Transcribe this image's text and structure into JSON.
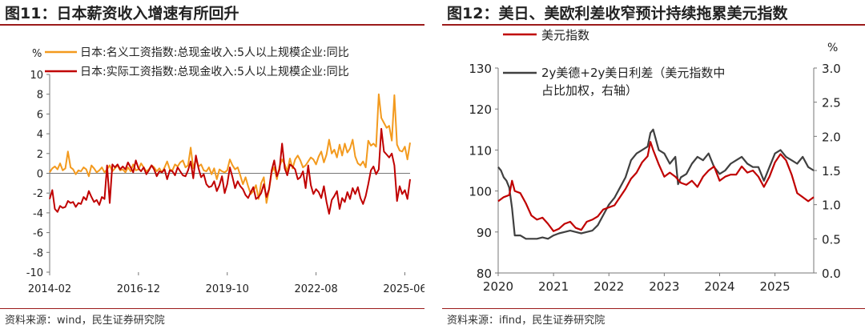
{
  "chart_data": [
    {
      "id": "fig11",
      "type": "line",
      "title": "图11：日本薪资收入增速有所回升",
      "unit_label": "%",
      "source": "资料来源：wind，民生证券研究院",
      "ylim": [
        -10,
        10
      ],
      "yticks": [
        -10,
        -8,
        -6,
        -4,
        -2,
        0,
        2,
        4,
        6,
        8,
        10
      ],
      "x_tick_labels": [
        "2014-02",
        "2016-12",
        "2019-10",
        "2022-08",
        "2025-06"
      ],
      "x_tick_index": [
        0,
        34,
        68,
        102,
        136
      ],
      "colors": {
        "nominal": "#f39a1e",
        "real": "#c00000"
      },
      "series": [
        {
          "name": "日本:名义工资指数:总现金收入:5人以上规模企业:同比",
          "key": "nominal",
          "values": [
            0.1,
            0.5,
            0.7,
            0.4,
            1.0,
            0.3,
            0.5,
            2.2,
            0.6,
            0.4,
            -0.1,
            0.3,
            0.2,
            0.6,
            0.4,
            -0.3,
            0.8,
            0.5,
            0.1,
            0.3,
            0.6,
            0.1,
            0.4,
            0.8,
            0.2,
            0.5,
            0.8,
            0.3,
            0.4,
            0.1,
            0.6,
            0.2,
            0.9,
            0.3,
            0.4,
            1.0,
            0.6,
            0.2,
            0.4,
            0.8,
            0.6,
            0.2,
            0.5,
            0.1,
            0.6,
            1.2,
            0.4,
            0.3,
            0.9,
            0.7,
            1.1,
            1.3,
            0.6,
            0.8,
            2.6,
            0.5,
            1.4,
            0.7,
            0.9,
            0.3,
            0.2,
            0.6,
            -0.1,
            0.5,
            -0.6,
            0.4,
            0.2,
            0.1,
            0.3,
            1.4,
            0.8,
            0.4,
            0.6,
            -0.2,
            -1.1,
            -0.4,
            -1.3,
            -2.1,
            -1.8,
            -1.2,
            -2.6,
            -1.0,
            -0.4,
            -3.0,
            -1.7,
            0.1,
            0.6,
            -0.6,
            0.7,
            1.4,
            0.9,
            0.2,
            1.5,
            0.5,
            1.4,
            1.8,
            1.3,
            0.6,
            0.8,
            1.2,
            1.6,
            1.4,
            0.9,
            1.7,
            2.2,
            1.1,
            1.9,
            3.4,
            2.0,
            2.4,
            1.6,
            2.9,
            1.8,
            3.0,
            2.1,
            2.5,
            3.4,
            1.7,
            1.0,
            0.8,
            1.2,
            0.6,
            3.3,
            2.8,
            3.0,
            2.7,
            8.0,
            5.6,
            5.1,
            4.6,
            4.8,
            3.3,
            7.9,
            2.9,
            2.3,
            2.2,
            2.7,
            1.4,
            3.1
          ]
        },
        {
          "name": "日本:实际工资指数:总现金收入:5人以上规模企业:同比",
          "key": "real",
          "values": [
            -2.6,
            -1.7,
            -3.6,
            -3.9,
            -3.3,
            -3.5,
            -3.4,
            -2.8,
            -3.0,
            -2.9,
            -3.4,
            -3.0,
            -3.1,
            -2.4,
            -2.7,
            -1.8,
            -2.4,
            -2.9,
            -2.7,
            -3.2,
            -2.4,
            -2.6,
            0.8,
            -3.0,
            0.9,
            0.6,
            0.9,
            0.4,
            0.7,
            0.4,
            1.1,
            0.6,
            0.1,
            1.3,
            0.5,
            0.2,
            0.6,
            -0.1,
            0.3,
            0.8,
            0.4,
            -0.3,
            0.2,
            0.1,
            0.4,
            -0.6,
            0.3,
            0.2,
            -0.2,
            0.6,
            0.2,
            -0.2,
            -0.3,
            0.3,
            1.2,
            -0.5,
            1.8,
            0.5,
            -0.4,
            -0.1,
            -1.1,
            -1.4,
            -1.3,
            -0.8,
            -1.8,
            -1.2,
            -0.3,
            -2.0,
            -1.1,
            0.6,
            -0.4,
            -1.5,
            -0.8,
            -1.3,
            -1.6,
            -2.2,
            -2.5,
            -1.9,
            -1.4,
            -2.6,
            -2.4,
            -2.0,
            -1.1,
            -2.4,
            -1.6,
            0.3,
            1.3,
            -0.3,
            0.4,
            3.0,
            0.5,
            -0.2,
            0.9,
            0.7,
            0.4,
            -0.6,
            -0.4,
            0.2,
            -1.5,
            0.8,
            -1.2,
            -2.1,
            -1.6,
            -1.9,
            -2.5,
            -1.3,
            -2.9,
            -4.1,
            -2.7,
            -2.3,
            -1.8,
            -3.6,
            -2.5,
            -2.9,
            -1.9,
            -2.6,
            -1.5,
            -2.1,
            -1.4,
            -2.5,
            -3.1,
            -2.3,
            -1.1,
            0.3,
            0.7,
            -0.1,
            0.4,
            4.5,
            2.2,
            1.9,
            1.6,
            2.0,
            0.8,
            -2.8,
            -1.3,
            -2.1,
            -1.7,
            -2.6,
            -0.6
          ]
        }
      ]
    },
    {
      "id": "fig12",
      "type": "line",
      "title": "图12：美日、美欧利差收窄预计持续拖累美元指数",
      "right_unit_label": "%",
      "source": "资料来源：ifind，民生证券研究院",
      "x_range": [
        2020.0,
        2025.7
      ],
      "x_ticks": [
        2020,
        2021,
        2022,
        2023,
        2024,
        2025
      ],
      "left_axis": {
        "ylim": [
          80,
          130
        ],
        "ticks": [
          80,
          90,
          100,
          110,
          120,
          130
        ]
      },
      "right_axis": {
        "ylim": [
          0.0,
          3.0
        ],
        "ticks": [
          "0.0",
          "0.5",
          "1.0",
          "1.5",
          "2.0",
          "2.5",
          "3.0"
        ]
      },
      "colors": {
        "dxy": "#c00000",
        "spread": "#404040"
      },
      "series": [
        {
          "name": "美元指数",
          "key": "dxy",
          "axis": "left",
          "x": [
            2020.0,
            2020.1,
            2020.2,
            2020.25,
            2020.3,
            2020.4,
            2020.5,
            2020.6,
            2020.7,
            2020.8,
            2020.9,
            2021.0,
            2021.1,
            2021.2,
            2021.3,
            2021.4,
            2021.5,
            2021.6,
            2021.7,
            2021.8,
            2021.9,
            2022.0,
            2022.1,
            2022.2,
            2022.3,
            2022.4,
            2022.5,
            2022.6,
            2022.7,
            2022.75,
            2022.8,
            2022.9,
            2023.0,
            2023.1,
            2023.2,
            2023.3,
            2023.4,
            2023.5,
            2023.6,
            2023.7,
            2023.8,
            2023.9,
            2024.0,
            2024.1,
            2024.2,
            2024.3,
            2024.4,
            2024.5,
            2024.6,
            2024.7,
            2024.8,
            2024.9,
            2025.0,
            2025.1,
            2025.2,
            2025.3,
            2025.4,
            2025.5,
            2025.6,
            2025.7
          ],
          "values": [
            97.5,
            98.5,
            99.0,
            102.5,
            100.0,
            99.5,
            97.0,
            94.0,
            93.0,
            93.5,
            92.0,
            90.2,
            90.8,
            92.0,
            92.5,
            91.0,
            90.5,
            92.5,
            93.0,
            93.8,
            95.5,
            96.0,
            96.5,
            98.5,
            100.5,
            103.0,
            104.5,
            107.0,
            108.5,
            112.0,
            110.0,
            106.5,
            103.5,
            104.5,
            103.5,
            102.0,
            101.5,
            102.5,
            101.0,
            103.5,
            105.0,
            106.0,
            102.5,
            103.5,
            104.0,
            104.0,
            106.0,
            104.5,
            105.0,
            103.5,
            101.0,
            103.5,
            107.0,
            109.0,
            107.5,
            104.0,
            99.5,
            98.5,
            97.5,
            98.5
          ]
        },
        {
          "name": "2y美德+2y美日利差（美元指数中占比加权，右轴）",
          "key": "spread",
          "axis": "right",
          "x": [
            2020.0,
            2020.05,
            2020.1,
            2020.15,
            2020.2,
            2020.25,
            2020.3,
            2020.4,
            2020.5,
            2020.6,
            2020.7,
            2020.8,
            2020.9,
            2021.0,
            2021.1,
            2021.2,
            2021.3,
            2021.4,
            2021.5,
            2021.6,
            2021.7,
            2021.8,
            2021.9,
            2022.0,
            2022.1,
            2022.2,
            2022.3,
            2022.4,
            2022.5,
            2022.6,
            2022.7,
            2022.75,
            2022.8,
            2022.9,
            2023.0,
            2023.1,
            2023.2,
            2023.25,
            2023.3,
            2023.4,
            2023.5,
            2023.6,
            2023.7,
            2023.8,
            2023.9,
            2024.0,
            2024.1,
            2024.2,
            2024.3,
            2024.4,
            2024.5,
            2024.6,
            2024.7,
            2024.8,
            2024.9,
            2025.0,
            2025.1,
            2025.2,
            2025.3,
            2025.4,
            2025.5,
            2025.6,
            2025.7
          ],
          "values": [
            1.55,
            1.5,
            1.4,
            1.35,
            1.25,
            0.95,
            0.55,
            0.55,
            0.5,
            0.5,
            0.5,
            0.52,
            0.5,
            0.55,
            0.58,
            0.6,
            0.62,
            0.6,
            0.58,
            0.6,
            0.62,
            0.7,
            0.85,
            1.0,
            1.1,
            1.25,
            1.4,
            1.65,
            1.75,
            1.8,
            1.85,
            2.05,
            2.1,
            1.8,
            1.75,
            1.6,
            1.7,
            1.3,
            1.4,
            1.45,
            1.6,
            1.7,
            1.65,
            1.75,
            1.55,
            1.45,
            1.5,
            1.6,
            1.65,
            1.7,
            1.6,
            1.55,
            1.55,
            1.35,
            1.55,
            1.75,
            1.8,
            1.7,
            1.65,
            1.6,
            1.7,
            1.55,
            1.5
          ]
        }
      ]
    }
  ]
}
